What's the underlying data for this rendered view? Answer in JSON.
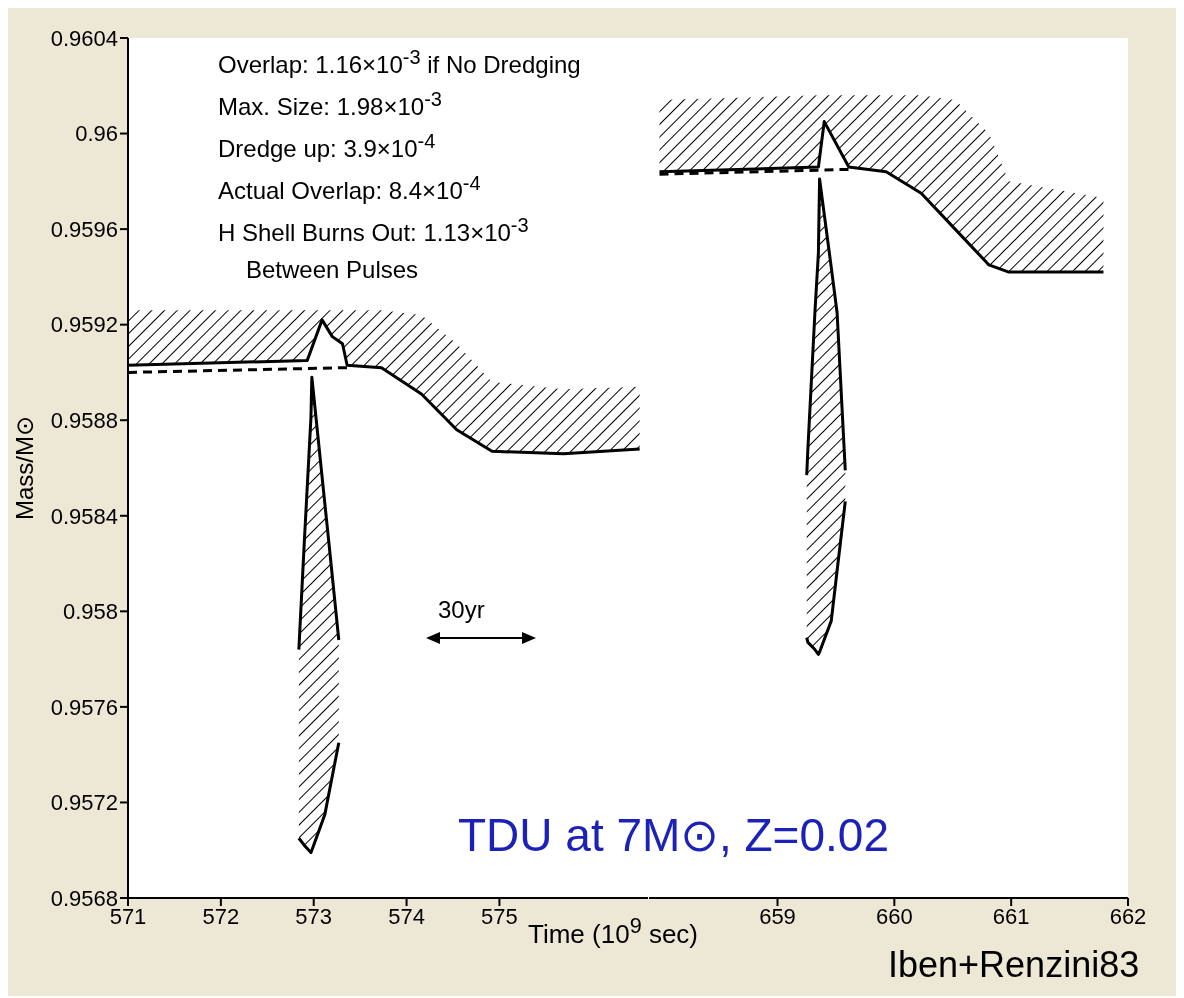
{
  "chart_data": [
    {
      "type": "line",
      "ylabel": "Mass/M⊙",
      "xlim": [
        571,
        576.6
      ],
      "xticks": [
        571,
        572,
        573,
        574,
        575
      ],
      "ylim": [
        0.9568,
        0.9604
      ],
      "yticks": [
        0.9568,
        0.9572,
        0.9576,
        0.958,
        0.9584,
        0.9588,
        0.9592,
        0.9596,
        0.96,
        0.9604
      ],
      "series": [
        {
          "color": "#000000",
          "x": [
            571.0,
            572.93,
            573.09,
            573.2,
            573.31,
            573.36,
            573.73,
            574.16,
            574.54,
            574.92,
            575.69,
            576.51
          ],
          "values": [
            0.95903,
            0.95905,
            0.95922,
            0.95915,
            0.95912,
            0.95903,
            0.95902,
            0.95891,
            0.95876,
            0.95867,
            0.95866,
            0.95868
          ],
          "lower": [
            0.95903,
            0.95905,
            0.95922,
            0.95915,
            0.95912,
            0.95903,
            0.95902,
            0.95891,
            0.95876,
            0.95867,
            0.95866,
            0.95868
          ],
          "upper": [
            0.95926,
            0.95926,
            0.95926,
            0.95926,
            0.95926,
            0.95926,
            0.95926,
            0.95924,
            0.95912,
            0.95896,
            0.95893,
            0.95894
          ]
        },
        {
          "color": "#000000",
          "line_style": "dashed",
          "x": [
            571.0,
            573.36
          ],
          "values": [
            0.959,
            0.95902
          ]
        },
        {
          "color": "#000000",
          "x": [
            572.84,
            572.9,
            572.97,
            572.98,
            573.12,
            573.16,
            573.27
          ],
          "values": [
            0.95784,
            0.9583,
            0.95881,
            0.95898,
            0.95845,
            0.9583,
            0.95788
          ],
          "lower": [
            0.95705,
            0.95702,
            0.95699,
            0.957,
            0.95715,
            0.95723,
            0.95745
          ],
          "upper": [
            0.95784,
            0.9583,
            0.95881,
            0.95898,
            0.95845,
            0.9583,
            0.95788
          ]
        },
        {
          "color": "#000000",
          "x": [
            572.84,
            572.9,
            572.97,
            572.98,
            573.12,
            573.16,
            573.27
          ],
          "values": [
            0.95705,
            0.95702,
            0.95699,
            0.957,
            0.95715,
            0.95723,
            0.95745
          ]
        }
      ],
      "annotations": [
        "Overlap: 1.16×10$^{-3}$ if No Dredging",
        "Max. Size: 1.98×10$^{-3}$",
        "Dredge up: 3.9×10$^{-4}$",
        "Actual Overlap: 8.4×10$^{-4}$",
        "H Shell Burns Out: 1.13×10$^{-3}$",
        "Between Pulses",
        "30yr"
      ]
    },
    {
      "type": "line",
      "xlabel": "Time (10$^{9}$ sec)",
      "xlim": [
        657.9,
        662
      ],
      "xticks": [
        659,
        660,
        661,
        662
      ],
      "ylim": [
        0.9568,
        0.9604
      ],
      "yticks": [
        0.9568,
        0.9572,
        0.9576,
        0.958,
        0.9584,
        0.9588,
        0.9592,
        0.9596,
        0.96,
        0.9604
      ],
      "tick_labels": "x",
      "series": [
        {
          "color": "#000000",
          "x": [
            657.99,
            659.35,
            659.4,
            659.61,
            659.93,
            660.23,
            660.52,
            660.81,
            660.98,
            661.79
          ],
          "values": [
            0.95984,
            0.95986,
            0.96005,
            0.95986,
            0.95984,
            0.95975,
            0.9596,
            0.95945,
            0.95942,
            0.95942
          ],
          "lower": [
            0.95984,
            0.95986,
            0.96005,
            0.95986,
            0.95984,
            0.95975,
            0.9596,
            0.95945,
            0.95942,
            0.95942
          ],
          "upper": [
            0.96014,
            0.96016,
            0.96016,
            0.96016,
            0.96016,
            0.96016,
            0.96014,
            0.96,
            0.9598,
            0.95973
          ]
        },
        {
          "color": "#000000",
          "line_style": "dashed",
          "x": [
            657.99,
            659.61
          ],
          "values": [
            0.95983,
            0.95985
          ]
        },
        {
          "color": "#000000",
          "x": [
            659.25,
            659.26,
            659.32,
            659.35,
            659.36,
            659.46,
            659.51,
            659.58
          ],
          "values": [
            0.95857,
            0.95868,
            0.95925,
            0.9595,
            0.95981,
            0.95944,
            0.95925,
            0.95859
          ],
          "lower": [
            0.95789,
            0.95787,
            0.95784,
            0.95782,
            0.95783,
            0.95796,
            0.95817,
            0.95846
          ],
          "upper": [
            0.95857,
            0.95868,
            0.95925,
            0.9595,
            0.95981,
            0.95944,
            0.95925,
            0.95859
          ]
        },
        {
          "color": "#000000",
          "x": [
            659.25,
            659.26,
            659.32,
            659.35,
            659.36,
            659.46,
            659.51,
            659.58
          ],
          "values": [
            0.95789,
            0.95787,
            0.95784,
            0.95782,
            0.95783,
            0.95796,
            0.95817,
            0.95846
          ]
        }
      ],
      "annotations": [
        "TDU at 7M⊙, Z=0.02",
        "Iben+Renzini83"
      ]
    }
  ]
}
